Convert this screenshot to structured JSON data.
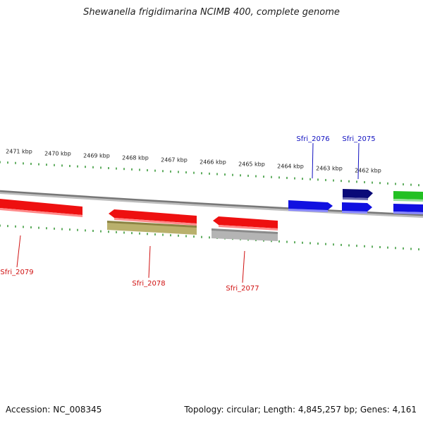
{
  "title": "Shewanella frigidimarina NCIMB 400, complete genome",
  "footer": {
    "accession": "Accession: NC_008345",
    "summary": "Topology: circular; Length: 4,845,257 bp; Genes: 4,161"
  },
  "colors": {
    "forward_tick": "#1e8c1e",
    "reverse_tick": "#1e8c1e",
    "backbone": "#7a7a7a",
    "label_forward": "#1010c0",
    "label_reverse": "#d01010",
    "red_gene": "#ee1010",
    "olive_gene": "#b9b06c",
    "gray_gene": "#b4b4b4",
    "blue_gene": "#1010e0",
    "navy_gene": "#0a0a78",
    "green_gene": "#22c022"
  },
  "scale_labels": [
    {
      "kbp": 2471,
      "text": "2471 kbp"
    },
    {
      "kbp": 2470,
      "text": "2470 kbp"
    },
    {
      "kbp": 2469,
      "text": "2469 kbp"
    },
    {
      "kbp": 2468,
      "text": "2468 kbp"
    },
    {
      "kbp": 2467,
      "text": "2467 kbp"
    },
    {
      "kbp": 2466,
      "text": "2466 kbp"
    },
    {
      "kbp": 2465,
      "text": "2465 kbp"
    },
    {
      "kbp": 2464,
      "text": "2464 kbp"
    },
    {
      "kbp": 2463,
      "text": "2463 kbp"
    },
    {
      "kbp": 2462,
      "text": "2462 kbp"
    }
  ],
  "labeled_genes": [
    {
      "id": "Sfri_2079",
      "label": "Sfri_2079",
      "strand": "reverse"
    },
    {
      "id": "Sfri_2078",
      "label": "Sfri_2078",
      "strand": "reverse"
    },
    {
      "id": "Sfri_2077",
      "label": "Sfri_2077",
      "strand": "reverse"
    },
    {
      "id": "Sfri_2076",
      "label": "Sfri_2076",
      "strand": "forward"
    },
    {
      "id": "Sfri_2075",
      "label": "Sfri_2075",
      "strand": "forward"
    }
  ]
}
